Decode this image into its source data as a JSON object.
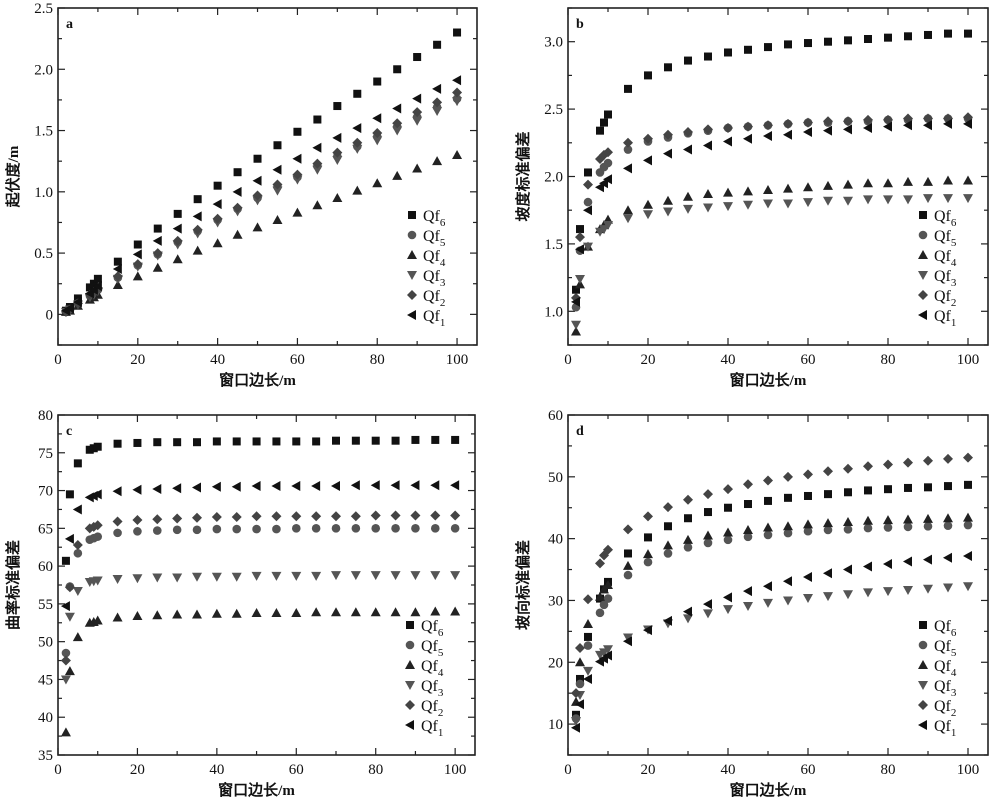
{
  "chart_data": [
    {
      "type": "scatter",
      "panel_label": "a",
      "xlabel": "窗口边长/m",
      "ylabel": "起伏度/m",
      "xlim": [
        0,
        105
      ],
      "ylim": [
        -0.25,
        2.5
      ],
      "xticks": [
        0,
        20,
        40,
        60,
        80,
        100
      ],
      "yticks": [
        0,
        0.5,
        1.0,
        1.5,
        2.0,
        2.5
      ],
      "ytick_labels": [
        "0",
        "0.5",
        "1.0",
        "1.5",
        "2.0",
        "2.5"
      ],
      "legend_position": "bottom-right",
      "x": [
        2,
        3,
        5,
        8,
        9,
        10,
        15,
        20,
        25,
        30,
        35,
        40,
        45,
        50,
        55,
        60,
        65,
        70,
        75,
        80,
        85,
        90,
        95,
        100
      ],
      "series": [
        {
          "name": "Qf6",
          "marker": "square",
          "color": "#111111",
          "values": [
            0.03,
            0.06,
            0.13,
            0.22,
            0.25,
            0.29,
            0.43,
            0.57,
            0.7,
            0.82,
            0.94,
            1.05,
            1.16,
            1.27,
            1.38,
            1.49,
            1.59,
            1.7,
            1.8,
            1.9,
            2.0,
            2.1,
            2.2,
            2.3
          ]
        },
        {
          "name": "Qf5",
          "marker": "circle",
          "color": "#555555",
          "values": [
            0.02,
            0.04,
            0.09,
            0.15,
            0.17,
            0.2,
            0.3,
            0.4,
            0.49,
            0.59,
            0.68,
            0.77,
            0.86,
            0.95,
            1.04,
            1.12,
            1.21,
            1.29,
            1.37,
            1.45,
            1.53,
            1.61,
            1.69,
            1.76
          ]
        },
        {
          "name": "Qf4",
          "marker": "triangle-up",
          "color": "#222222",
          "values": [
            0.02,
            0.03,
            0.07,
            0.12,
            0.14,
            0.16,
            0.24,
            0.31,
            0.38,
            0.45,
            0.52,
            0.58,
            0.65,
            0.71,
            0.77,
            0.83,
            0.89,
            0.95,
            1.01,
            1.07,
            1.13,
            1.19,
            1.25,
            1.3
          ]
        },
        {
          "name": "Qf3",
          "marker": "triangle-down",
          "color": "#555555",
          "values": [
            0.02,
            0.04,
            0.08,
            0.14,
            0.16,
            0.19,
            0.29,
            0.39,
            0.48,
            0.57,
            0.66,
            0.75,
            0.84,
            0.93,
            1.01,
            1.1,
            1.18,
            1.26,
            1.35,
            1.42,
            1.5,
            1.58,
            1.66,
            1.74
          ]
        },
        {
          "name": "Qf2",
          "marker": "diamond",
          "color": "#444444",
          "values": [
            0.02,
            0.04,
            0.09,
            0.16,
            0.18,
            0.21,
            0.31,
            0.41,
            0.5,
            0.6,
            0.69,
            0.78,
            0.87,
            0.97,
            1.06,
            1.14,
            1.23,
            1.32,
            1.4,
            1.48,
            1.56,
            1.65,
            1.73,
            1.81
          ]
        },
        {
          "name": "Qf1",
          "marker": "triangle-left",
          "color": "#111111",
          "values": [
            0.03,
            0.05,
            0.1,
            0.17,
            0.2,
            0.23,
            0.37,
            0.49,
            0.6,
            0.7,
            0.8,
            0.9,
            1.0,
            1.09,
            1.18,
            1.27,
            1.36,
            1.44,
            1.52,
            1.6,
            1.68,
            1.76,
            1.84,
            1.91
          ]
        }
      ]
    },
    {
      "type": "scatter",
      "panel_label": "b",
      "xlabel": "窗口边长/m",
      "ylabel": "坡度标准偏差",
      "xlim": [
        0,
        105
      ],
      "ylim": [
        0.75,
        3.25
      ],
      "xticks": [
        0,
        20,
        40,
        60,
        80,
        100
      ],
      "yticks": [
        1.0,
        1.5,
        2.0,
        2.5,
        3.0
      ],
      "ytick_labels": [
        "1.0",
        "1.5",
        "2.0",
        "2.5",
        "3.0"
      ],
      "legend_position": "bottom-right",
      "x": [
        2,
        3,
        5,
        8,
        9,
        10,
        15,
        20,
        25,
        30,
        35,
        40,
        45,
        50,
        55,
        60,
        65,
        70,
        75,
        80,
        85,
        90,
        95,
        100
      ],
      "series": [
        {
          "name": "Qf6",
          "marker": "square",
          "color": "#111111",
          "values": [
            1.16,
            1.61,
            2.03,
            2.34,
            2.4,
            2.46,
            2.65,
            2.75,
            2.81,
            2.86,
            2.89,
            2.92,
            2.94,
            2.96,
            2.98,
            2.99,
            3.0,
            3.01,
            3.02,
            3.03,
            3.04,
            3.05,
            3.06,
            3.06
          ]
        },
        {
          "name": "Qf5",
          "marker": "circle",
          "color": "#555555",
          "values": [
            1.03,
            1.45,
            1.81,
            2.03,
            2.07,
            2.1,
            2.2,
            2.26,
            2.29,
            2.32,
            2.34,
            2.36,
            2.37,
            2.38,
            2.39,
            2.4,
            2.4,
            2.41,
            2.41,
            2.42,
            2.42,
            2.43,
            2.43,
            2.43
          ]
        },
        {
          "name": "Qf4",
          "marker": "triangle-up",
          "color": "#222222",
          "values": [
            0.85,
            1.2,
            1.48,
            1.61,
            1.64,
            1.68,
            1.75,
            1.79,
            1.82,
            1.85,
            1.87,
            1.88,
            1.89,
            1.9,
            1.91,
            1.92,
            1.93,
            1.94,
            1.95,
            1.95,
            1.96,
            1.96,
            1.97,
            1.97
          ]
        },
        {
          "name": "Qf3",
          "marker": "triangle-down",
          "color": "#555555",
          "values": [
            0.9,
            1.24,
            1.48,
            1.59,
            1.61,
            1.64,
            1.69,
            1.72,
            1.74,
            1.76,
            1.77,
            1.78,
            1.79,
            1.8,
            1.8,
            1.81,
            1.82,
            1.82,
            1.83,
            1.83,
            1.83,
            1.84,
            1.84,
            1.84
          ]
        },
        {
          "name": "Qf2",
          "marker": "diamond",
          "color": "#444444",
          "values": [
            1.1,
            1.55,
            1.94,
            2.13,
            2.16,
            2.18,
            2.25,
            2.28,
            2.31,
            2.33,
            2.35,
            2.36,
            2.37,
            2.38,
            2.39,
            2.4,
            2.41,
            2.41,
            2.42,
            2.42,
            2.43,
            2.43,
            2.43,
            2.44
          ]
        },
        {
          "name": "Qf1",
          "marker": "triangle-left",
          "color": "#111111",
          "values": [
            1.07,
            1.46,
            1.75,
            1.92,
            1.95,
            1.98,
            2.06,
            2.12,
            2.17,
            2.2,
            2.23,
            2.26,
            2.28,
            2.3,
            2.31,
            2.33,
            2.34,
            2.35,
            2.36,
            2.37,
            2.38,
            2.38,
            2.39,
            2.39
          ]
        }
      ]
    },
    {
      "type": "scatter",
      "panel_label": "c",
      "xlabel": "窗口边长/m",
      "ylabel": "曲率标准偏差",
      "xlim": [
        0,
        105
      ],
      "ylim": [
        35,
        80
      ],
      "xticks": [
        0,
        20,
        40,
        60,
        80,
        100
      ],
      "yticks": [
        35,
        40,
        45,
        50,
        55,
        60,
        65,
        70,
        75,
        80
      ],
      "ytick_labels": [
        "35",
        "40",
        "45",
        "50",
        "55",
        "60",
        "65",
        "70",
        "75",
        "80"
      ],
      "legend_position": "bottom-right",
      "x": [
        2,
        3,
        5,
        8,
        9,
        10,
        15,
        20,
        25,
        30,
        35,
        40,
        45,
        50,
        55,
        60,
        65,
        70,
        75,
        80,
        85,
        90,
        95,
        100
      ],
      "series": [
        {
          "name": "Qf6",
          "marker": "square",
          "color": "#111111",
          "values": [
            60.7,
            69.5,
            73.6,
            75.4,
            75.6,
            75.8,
            76.2,
            76.3,
            76.4,
            76.4,
            76.4,
            76.5,
            76.5,
            76.5,
            76.5,
            76.5,
            76.5,
            76.6,
            76.6,
            76.6,
            76.6,
            76.7,
            76.7,
            76.7
          ]
        },
        {
          "name": "Qf5",
          "marker": "circle",
          "color": "#555555",
          "values": [
            48.5,
            57.3,
            61.7,
            63.5,
            63.7,
            63.9,
            64.4,
            64.6,
            64.7,
            64.8,
            64.8,
            64.9,
            64.9,
            64.9,
            64.9,
            65.0,
            65.0,
            65.0,
            65.0,
            65.0,
            65.0,
            65.0,
            65.0,
            65.0
          ]
        },
        {
          "name": "Qf4",
          "marker": "triangle-up",
          "color": "#222222",
          "values": [
            38.0,
            46.1,
            50.6,
            52.5,
            52.6,
            52.8,
            53.2,
            53.4,
            53.5,
            53.6,
            53.6,
            53.7,
            53.7,
            53.8,
            53.8,
            53.8,
            53.9,
            53.9,
            53.9,
            53.9,
            53.9,
            53.9,
            54.0,
            54.0
          ]
        },
        {
          "name": "Qf3",
          "marker": "triangle-down",
          "color": "#555555",
          "values": [
            45.0,
            53.3,
            56.7,
            57.9,
            58.0,
            58.1,
            58.3,
            58.4,
            58.5,
            58.5,
            58.6,
            58.6,
            58.6,
            58.7,
            58.7,
            58.7,
            58.7,
            58.8,
            58.8,
            58.8,
            58.8,
            58.8,
            58.8,
            58.8
          ]
        },
        {
          "name": "Qf2",
          "marker": "diamond",
          "color": "#444444",
          "values": [
            47.5,
            57.2,
            62.8,
            65.0,
            65.2,
            65.4,
            65.9,
            66.1,
            66.2,
            66.3,
            66.4,
            66.5,
            66.5,
            66.6,
            66.6,
            66.6,
            66.6,
            66.6,
            66.6,
            66.7,
            66.7,
            66.7,
            66.7,
            66.7
          ]
        },
        {
          "name": "Qf1",
          "marker": "triangle-left",
          "color": "#111111",
          "values": [
            54.7,
            63.6,
            67.5,
            69.1,
            69.3,
            69.5,
            69.9,
            70.1,
            70.2,
            70.3,
            70.4,
            70.5,
            70.5,
            70.6,
            70.6,
            70.6,
            70.6,
            70.6,
            70.7,
            70.7,
            70.7,
            70.7,
            70.7,
            70.7
          ]
        }
      ]
    },
    {
      "type": "scatter",
      "panel_label": "d",
      "xlabel": "窗口边长/m",
      "ylabel": "坡向标准偏差",
      "xlim": [
        0,
        105
      ],
      "ylim": [
        5,
        60
      ],
      "xticks": [
        0,
        20,
        40,
        60,
        80,
        100
      ],
      "yticks": [
        10,
        20,
        30,
        40,
        50,
        60
      ],
      "ytick_labels": [
        "10",
        "20",
        "30",
        "40",
        "50",
        "60"
      ],
      "legend_position": "bottom-right",
      "x": [
        2,
        3,
        5,
        8,
        9,
        10,
        15,
        20,
        25,
        30,
        35,
        40,
        45,
        50,
        55,
        60,
        65,
        70,
        75,
        80,
        85,
        90,
        95,
        100
      ],
      "series": [
        {
          "name": "Qf6",
          "marker": "square",
          "color": "#111111",
          "values": [
            11.5,
            17.3,
            24.1,
            30.3,
            31.8,
            33.0,
            37.6,
            40.2,
            42.0,
            43.3,
            44.3,
            45.0,
            45.6,
            46.1,
            46.6,
            46.9,
            47.2,
            47.5,
            47.8,
            48.0,
            48.2,
            48.3,
            48.5,
            48.7
          ]
        },
        {
          "name": "Qf5",
          "marker": "circle",
          "color": "#555555",
          "values": [
            10.9,
            16.5,
            22.7,
            28.0,
            29.3,
            30.3,
            34.1,
            36.2,
            37.6,
            38.6,
            39.3,
            39.8,
            40.3,
            40.6,
            40.9,
            41.2,
            41.4,
            41.5,
            41.7,
            41.8,
            41.9,
            42.0,
            42.1,
            42.2
          ]
        },
        {
          "name": "Qf4",
          "marker": "triangle-up",
          "color": "#222222",
          "values": [
            13.6,
            20.0,
            26.2,
            30.6,
            31.8,
            32.5,
            35.6,
            37.5,
            38.9,
            39.8,
            40.5,
            41.0,
            41.4,
            41.8,
            42.0,
            42.3,
            42.5,
            42.7,
            42.9,
            43.0,
            43.1,
            43.2,
            43.3,
            43.4
          ]
        },
        {
          "name": "Qf3",
          "marker": "triangle-down",
          "color": "#555555",
          "values": [
            10.5,
            14.7,
            18.6,
            21.2,
            21.6,
            22.1,
            24.0,
            25.3,
            26.3,
            27.1,
            27.9,
            28.6,
            29.1,
            29.6,
            30.0,
            30.4,
            30.7,
            31.0,
            31.3,
            31.5,
            31.7,
            31.9,
            32.1,
            32.3
          ]
        },
        {
          "name": "Qf2",
          "marker": "diamond",
          "color": "#444444",
          "values": [
            15.0,
            22.3,
            30.2,
            36.0,
            37.3,
            38.2,
            41.5,
            43.6,
            45.1,
            46.3,
            47.2,
            48.0,
            48.8,
            49.4,
            50.0,
            50.4,
            50.9,
            51.3,
            51.7,
            52.0,
            52.3,
            52.6,
            52.9,
            53.1
          ]
        },
        {
          "name": "Qf1",
          "marker": "triangle-left",
          "color": "#111111",
          "values": [
            9.4,
            13.2,
            17.3,
            20.1,
            20.6,
            21.1,
            23.4,
            25.2,
            26.7,
            28.2,
            29.4,
            30.5,
            31.5,
            32.3,
            33.1,
            33.8,
            34.4,
            35.0,
            35.5,
            35.9,
            36.3,
            36.6,
            36.9,
            37.2
          ]
        }
      ]
    }
  ]
}
